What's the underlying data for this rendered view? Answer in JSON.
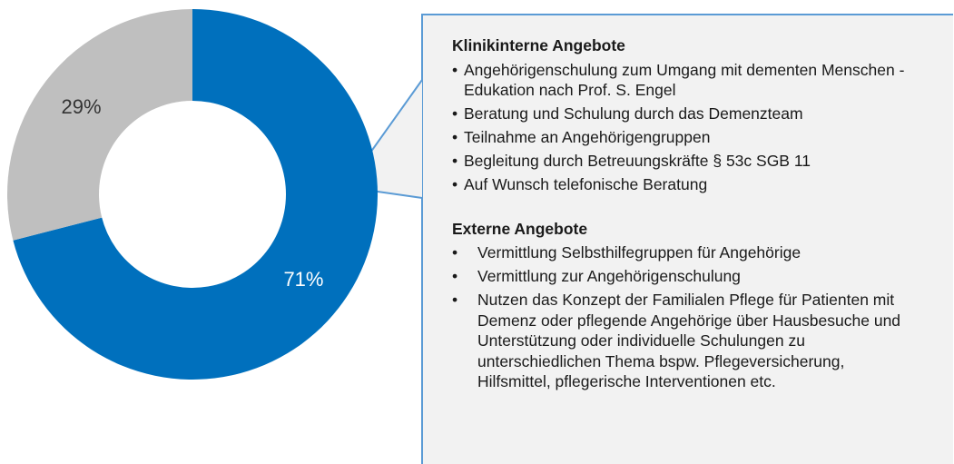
{
  "chart_data": {
    "type": "donut",
    "values": [
      71,
      29
    ],
    "value_labels": [
      "71%",
      "29%"
    ],
    "colors": [
      "#0070bd",
      "#bfbfbf"
    ],
    "label_colors": [
      "#ffffff",
      "#333333"
    ]
  },
  "callout": {
    "sections": [
      {
        "title": "Klinikinterne Angebote",
        "items": [
          "Angehörigenschulung zum Umgang mit dementen Menschen  - Edukation nach Prof. S. Engel",
          "Beratung und Schulung durch das Demenzteam",
          "Teilnahme an Angehörigengruppen",
          "Begleitung durch Betreuungskräfte § 53c SGB 11",
          "Auf Wunsch telefonische Beratung"
        ]
      },
      {
        "title": "Externe Angebote",
        "items": [
          "Vermittlung Selbsthilfegruppen für Angehörige",
          "Vermittlung zur Angehörigenschulung",
          "Nutzen das Konzept der Familialen Pflege für Patienten mit Demenz oder pflegende Angehörige über Hausbesuche und Unterstützung oder individuelle Schulungen zu unterschiedlichen Thema bspw. Pflegeversicherung, Hilfsmittel, pflegerische Interventionen etc."
        ]
      }
    ]
  }
}
